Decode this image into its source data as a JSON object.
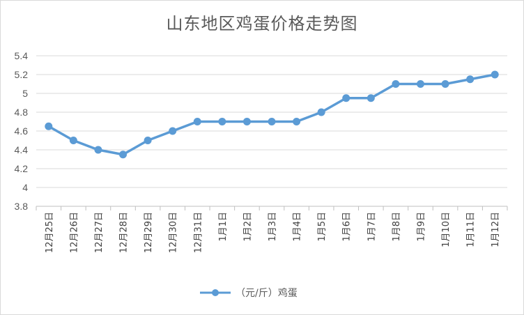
{
  "chart_data": {
    "type": "line",
    "title": "山东地区鸡蛋价格走势图",
    "categories": [
      "12月25日",
      "12月26日",
      "12月27日",
      "12月28日",
      "12月29日",
      "12月30日",
      "12月31日",
      "1月1日",
      "1月2日",
      "1月3日",
      "1月4日",
      "1月5日",
      "1月6日",
      "1月7日",
      "1月8日",
      "1月9日",
      "1月10日",
      "1月11日",
      "1月12日"
    ],
    "series": [
      {
        "name": "（元/斤）鸡蛋",
        "values": [
          4.65,
          4.5,
          4.4,
          4.35,
          4.5,
          4.6,
          4.7,
          4.7,
          4.7,
          4.7,
          4.7,
          4.8,
          4.95,
          4.95,
          5.1,
          5.1,
          5.1,
          5.15,
          5.2
        ],
        "color": "#5b9bd5"
      }
    ],
    "yticks": [
      "3.8",
      "4",
      "4.2",
      "4.4",
      "4.6",
      "4.8",
      "5",
      "5.2",
      "5.4"
    ],
    "ylim": [
      3.8,
      5.4
    ],
    "grid": true,
    "legend": "bottom",
    "xlabel": "",
    "ylabel": ""
  }
}
